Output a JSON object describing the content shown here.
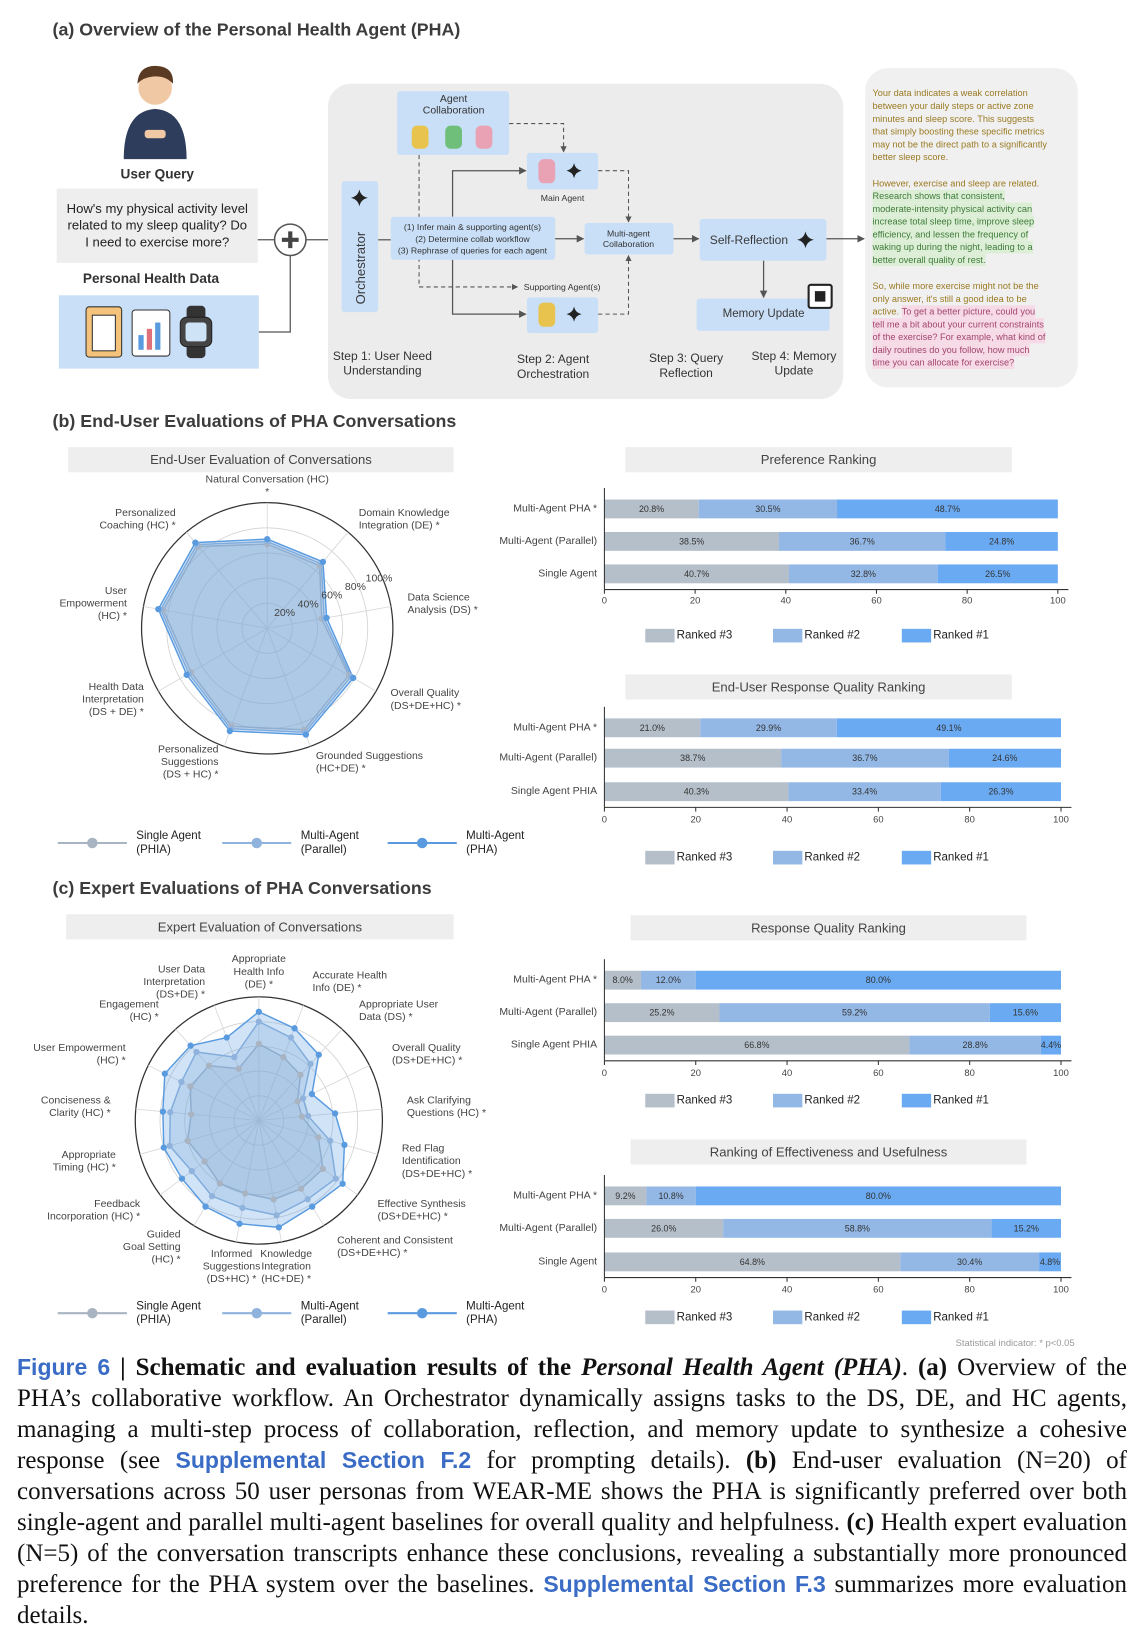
{
  "panel_a": {
    "title": "(a) Overview of the Personal Health Agent (PHA)",
    "user_query_label": "User Query",
    "user_query": [
      "How's my physical activity level",
      "related to my sleep quality? Do",
      "I need to exercise more?"
    ],
    "health_data_label": "Personal Health Data",
    "orchestrator": "Orchestrator",
    "agent_collaboration": [
      "Agent",
      "Collaboration"
    ],
    "main_agent": "Main Agent",
    "orchestration_steps": [
      "(1) Infer main & supporting agent(s)",
      "(2) Determine collab workflow",
      "(3) Rephrase of queries for each agent"
    ],
    "supporting_agents": "Supporting Agent(s)",
    "multi_agent_collaboration": [
      "Multi-agent",
      "Collaboration"
    ],
    "self_reflection": "Self-Reflection",
    "memory_update": "Memory Update",
    "steps": [
      [
        "Step 1: User Need",
        "Understanding"
      ],
      [
        "Step 2: Agent",
        "Orchestration"
      ],
      [
        "Step 3: Query",
        "Reflection"
      ],
      [
        "Step 4: Memory",
        "Update"
      ]
    ],
    "response": [
      [
        [
          {
            "t": "Your data indicates a weak correlation",
            "s": "plain"
          }
        ],
        [
          {
            "t": "between your daily steps or active zone",
            "s": "plain"
          }
        ],
        [
          {
            "t": "minutes and sleep score. This suggests",
            "s": "plain"
          }
        ],
        [
          {
            "t": "that simply boosting these specific metrics",
            "s": "plain"
          }
        ],
        [
          {
            "t": "may not be the direct path to a significantly",
            "s": "plain"
          }
        ],
        [
          {
            "t": "better sleep score.",
            "s": "plain"
          }
        ]
      ],
      [
        [
          {
            "t": "However, exercise and sleep are related.",
            "s": "plain"
          }
        ],
        [
          {
            "t": "Research shows that consistent,",
            "s": "green"
          }
        ],
        [
          {
            "t": "moderate-intensity physical activity can",
            "s": "green"
          }
        ],
        [
          {
            "t": "increase total sleep time, improve sleep",
            "s": "green"
          }
        ],
        [
          {
            "t": "efficiency, and lessen the frequency of",
            "s": "green"
          }
        ],
        [
          {
            "t": "waking up during the night, leading to a",
            "s": "green"
          }
        ],
        [
          {
            "t": "better overall quality of rest.",
            "s": "green"
          }
        ]
      ],
      [
        [
          {
            "t": "So, while more exercise might not be the",
            "s": "plain"
          }
        ],
        [
          {
            "t": "only answer, it's still a good idea to be",
            "s": "plain"
          }
        ],
        [
          {
            "t": "active. ",
            "s": "plain"
          },
          {
            "t": "To get a better picture, could you",
            "s": "pink"
          }
        ],
        [
          {
            "t": "tell me a bit about your current constraints",
            "s": "pink"
          }
        ],
        [
          {
            "t": "of the exercise? For example, what kind of",
            "s": "pink"
          }
        ],
        [
          {
            "t": "daily routines do you follow, how much",
            "s": "pink"
          }
        ],
        [
          {
            "t": "time you can allocate for exercise?",
            "s": "pink"
          }
        ]
      ]
    ]
  },
  "panel_b_title": "(b) End-User Evaluations of PHA Conversations",
  "panel_c_title": "(c) Expert Evaluations of PHA Conversations",
  "chart_data": [
    {
      "type": "radar",
      "title": "End-User Evaluation of Conversations",
      "categories": [
        "Natural Conversation (HC)\n*",
        "Domain Knowledge\nIntegration (DE) *",
        "Data Science\nAnalysis (DS) *",
        "Overall Quality\n(DS+DE+HC) *",
        "Grounded Suggestions\n(HC+DE) *",
        "Personalized\nSuggestions\n(DS + HC) *",
        "Health Data\nInterpretation\n(DS + DE) *",
        "User\nEmpowerment\n(HC) *",
        "Personalized\nCoaching (HC) *"
      ],
      "series": [
        {
          "name": "Single Agent (PHIA)",
          "color": "#a9b4c2",
          "values": [
            67,
            65,
            44,
            75,
            86,
            83,
            70,
            84,
            85
          ]
        },
        {
          "name": "Multi-Agent (Parallel)",
          "color": "#8fb3dc",
          "values": [
            69,
            67,
            46,
            77,
            88,
            85,
            72,
            86,
            87
          ]
        },
        {
          "name": "Multi-Agent (PHA)",
          "color": "#5a9be0",
          "values": [
            71,
            69,
            48,
            79,
            90,
            87,
            74,
            88,
            89
          ]
        }
      ],
      "ylim": [
        0,
        100
      ],
      "yticks": [
        {
          "value": 20,
          "label": "20%"
        },
        {
          "value": 40,
          "label": "40%"
        },
        {
          "value": 60,
          "label": "60%"
        },
        {
          "value": 80,
          "label": "80%"
        },
        {
          "value": 100,
          "label": "100%"
        }
      ],
      "grid": true
    },
    {
      "type": "stacked_barh",
      "title": "Preference Ranking",
      "categories": [
        "Multi-Agent PHA *",
        "Multi-Agent (Parallel)",
        "Single Agent"
      ],
      "series": [
        {
          "name": "Ranked #3",
          "color": "#b4bfca",
          "values": [
            20.8,
            38.5,
            40.7
          ],
          "value_labels": [
            "20.8%",
            "38.5%",
            "40.7%"
          ]
        },
        {
          "name": "Ranked #2",
          "color": "#93b8e6",
          "values": [
            30.5,
            36.7,
            32.8
          ],
          "value_labels": [
            "30.5%",
            "36.7%",
            "32.8%"
          ]
        },
        {
          "name": "Ranked #1",
          "color": "#6aaaf2",
          "values": [
            48.7,
            24.8,
            26.5
          ],
          "value_labels": [
            "48.7%",
            "24.8%",
            "26.5%"
          ]
        }
      ],
      "xlim": [
        0,
        100
      ],
      "xticks": [
        0,
        20,
        40,
        60,
        80,
        100
      ]
    },
    {
      "type": "stacked_barh",
      "title": "End-User Response Quality Ranking",
      "categories": [
        "Multi-Agent PHA *",
        "Multi-Agent (Parallel)",
        "Single Agent PHIA"
      ],
      "series": [
        {
          "name": "Ranked #3",
          "color": "#b4bfca",
          "values": [
            21.0,
            38.7,
            40.3
          ],
          "value_labels": [
            "21.0%",
            "38.7%",
            "40.3%"
          ]
        },
        {
          "name": "Ranked #2",
          "color": "#93b8e6",
          "values": [
            29.9,
            36.7,
            33.4
          ],
          "value_labels": [
            "29.9%",
            "36.7%",
            "33.4%"
          ]
        },
        {
          "name": "Ranked #1",
          "color": "#6aaaf2",
          "values": [
            49.1,
            24.6,
            26.3
          ],
          "value_labels": [
            "49.1%",
            "24.6%",
            "26.3%"
          ]
        }
      ],
      "xlim": [
        0,
        100
      ],
      "xticks": [
        0,
        20,
        40,
        60,
        80,
        100
      ]
    },
    {
      "type": "radar",
      "title": "Expert Evaluation of Conversations",
      "categories": [
        "Appropriate\nHealth Info\n(DE) *",
        "Accurate Health\nInfo (DE) *",
        "Appropriate User\nData (DS) *",
        "Overall Quality\n(DS+DE+HC) *",
        "Ask Clarifying\nQuestions (HC) *",
        "Red Flag\nIdentification\n(DS+DE+HC) *",
        "Effective Synthesis\n(DS+DE+HC) *",
        "Coherent and Consistent\n(DS+DE+HC) *",
        "Knowledge\nIntegration\n(HC+DE) *",
        "Informed\nSuggestions\n(DS+HC) *",
        "Guided\nGoal Setting\n(HC) *",
        "Feedback\nIncorporation (HC) *",
        "Appropriate\nTiming (HC) *",
        "Conciseness &\nClarity (HC) *",
        "User Empowerment\n(HC) *",
        "Engagement\n(HC) *",
        "User Data\nInterpretation\n(DS+DE) *"
      ],
      "series": [
        {
          "name": "Single Agent (PHIA)",
          "color": "#a9b4c2",
          "values": [
            62,
            55,
            50,
            35,
            35,
            50,
            65,
            65,
            65,
            60,
            60,
            55,
            60,
            55,
            62,
            60,
            45
          ]
        },
        {
          "name": "Multi-Agent (Parallel)",
          "color": "#8fb3dc",
          "values": [
            80,
            72,
            62,
            40,
            40,
            60,
            78,
            75,
            78,
            72,
            72,
            68,
            75,
            72,
            70,
            75,
            55
          ]
        },
        {
          "name": "Multi-Agent (PHA)",
          "color": "#5a9be0",
          "values": [
            88,
            80,
            72,
            48,
            62,
            72,
            85,
            82,
            88,
            85,
            82,
            78,
            80,
            78,
            85,
            82,
            72
          ]
        }
      ],
      "ylim": [
        0,
        100
      ],
      "yticks": [
        20,
        40,
        60,
        80,
        100
      ],
      "tick_labels": false,
      "grid": true
    },
    {
      "type": "stacked_barh",
      "title": "Response Quality Ranking",
      "categories": [
        "Multi-Agent PHA *",
        "Multi-Agent (Parallel)",
        "Single Agent PHIA"
      ],
      "series": [
        {
          "name": "Ranked #3",
          "color": "#b4bfca",
          "values": [
            8.0,
            25.2,
            66.8
          ],
          "value_labels": [
            "8.0%",
            "25.2%",
            "66.8%"
          ]
        },
        {
          "name": "Ranked #2",
          "color": "#93b8e6",
          "values": [
            12.0,
            59.2,
            28.8
          ],
          "value_labels": [
            "12.0%",
            "59.2%",
            "28.8%"
          ]
        },
        {
          "name": "Ranked #1",
          "color": "#6aaaf2",
          "values": [
            80.0,
            15.6,
            4.4
          ],
          "value_labels": [
            "80.0%",
            "15.6%",
            "4.4%"
          ]
        }
      ],
      "xlim": [
        0,
        100
      ],
      "xticks": [
        0,
        20,
        40,
        60,
        80,
        100
      ]
    },
    {
      "type": "stacked_barh",
      "title": "Ranking of Effectiveness and Usefulness",
      "categories": [
        "Multi-Agent PHA *",
        "Multi-Agent (Parallel)",
        "Single Agent"
      ],
      "series": [
        {
          "name": "Ranked #3",
          "color": "#b4bfca",
          "values": [
            9.2,
            26.0,
            64.8
          ],
          "value_labels": [
            "9.2%",
            "26.0%",
            "64.8%"
          ]
        },
        {
          "name": "Ranked #2",
          "color": "#93b8e6",
          "values": [
            10.8,
            58.8,
            30.4
          ],
          "value_labels": [
            "10.8%",
            "58.8%",
            "30.4%"
          ]
        },
        {
          "name": "Ranked #1",
          "color": "#6aaaf2",
          "values": [
            80.0,
            15.2,
            4.8
          ],
          "value_labels": [
            "80.0%",
            "15.2%",
            "4.8%"
          ]
        }
      ],
      "xlim": [
        0,
        100
      ],
      "xticks": [
        0,
        20,
        40,
        60,
        80,
        100
      ]
    }
  ],
  "footnote": "Statistical indicator: * p<0.05",
  "caption": {
    "segments": [
      {
        "t": "Figure 6",
        "s": "link"
      },
      {
        "t": " | ",
        "s": "bold"
      },
      {
        "t": "Schematic and evaluation results of the ",
        "s": "bold"
      },
      {
        "t": "Personal Health Agent (PHA)",
        "s": "bolditalic"
      },
      {
        "t": ". ",
        "s": "plain"
      },
      {
        "t": "(a)",
        "s": "bold"
      },
      {
        "t": " Overview of the PHA’s collaborative workflow. An Orchestrator dynamically assigns tasks to the DS, DE, and HC agents, managing a multi-step process of collaboration, reflection, and memory update to synthesize a cohesive response (see ",
        "s": "plain"
      },
      {
        "t": "Supplemental Section F.2",
        "s": "link"
      },
      {
        "t": " for prompting details). ",
        "s": "plain"
      },
      {
        "t": "(b)",
        "s": "bold"
      },
      {
        "t": " End-user evaluation (N=20) of conversations across 50 user personas from WEAR-ME shows the PHA is significantly preferred over both single-agent and parallel multi-agent baselines for overall quality and helpfulness. ",
        "s": "plain"
      },
      {
        "t": "(c)",
        "s": "bold"
      },
      {
        "t": " Health expert evaluation (N=5) of the conversation transcripts enhance these conclusions, revealing a substantially more pronounced preference for the PHA system over the baselines. ",
        "s": "plain"
      },
      {
        "t": "Supplemental Section F.3",
        "s": "link"
      },
      {
        "t": " summarizes more evaluation details.",
        "s": "plain"
      }
    ]
  }
}
